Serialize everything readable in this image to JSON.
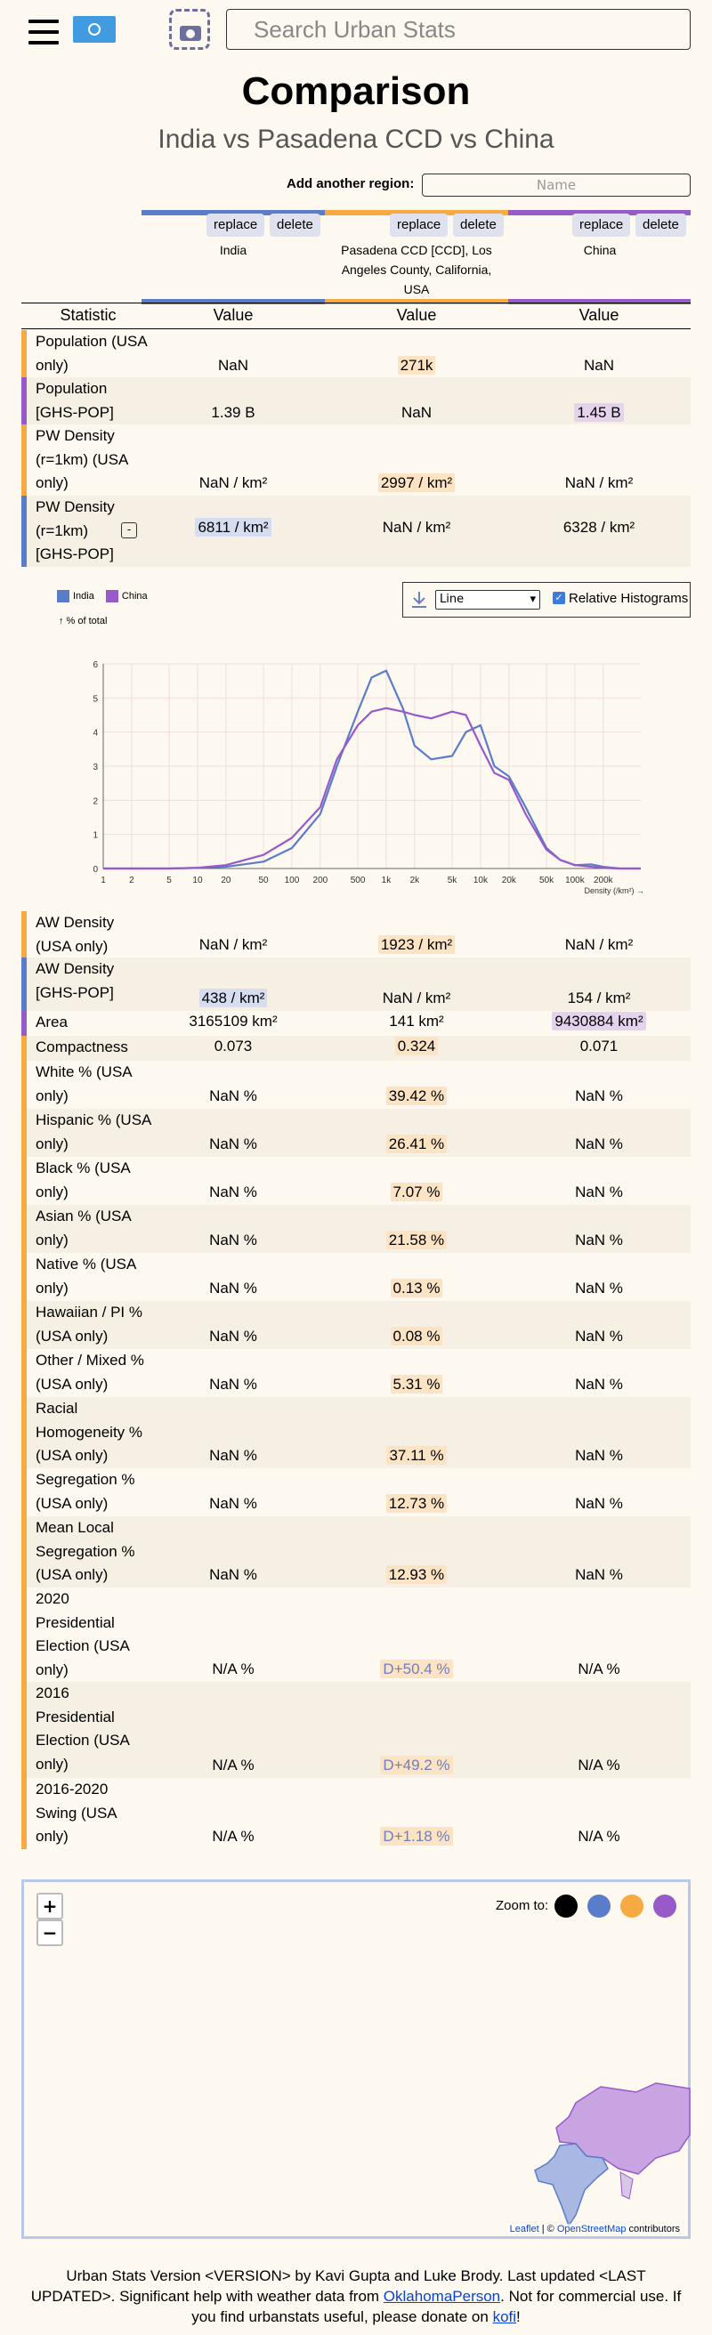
{
  "header": {
    "search_placeholder": "Search Urban Stats",
    "icons": [
      "menu-icon",
      "un-flag-icon",
      "screenshot-icon"
    ]
  },
  "title": "Comparison",
  "subtitle": "India vs Pasadena CCD vs China",
  "add_region": {
    "label": "Add another region:",
    "placeholder": "Name"
  },
  "regions": [
    {
      "name": "India",
      "color": "#5a7dc9",
      "replace": "replace",
      "delete": "delete"
    },
    {
      "name": "Pasadena CCD [CCD], Los Angeles County, California, USA",
      "color": "#f7aa41",
      "replace": "replace",
      "delete": "delete"
    },
    {
      "name": "China",
      "color": "#975ac9",
      "replace": "replace",
      "delete": "delete"
    }
  ],
  "table_headers": {
    "statistic": "Statistic",
    "value": "Value"
  },
  "rows_top": [
    {
      "stat": "Population (USA only)",
      "stripe": "#f7aa41",
      "v": [
        "NaN",
        "271k",
        "NaN"
      ]
    },
    {
      "stat": "Population [GHS-POP]",
      "stripe": "#975ac9",
      "v": [
        "1.39 B",
        "NaN",
        "1.45 B"
      ]
    },
    {
      "stat": "PW Density (r=1km) (USA only)",
      "stripe": "#f7aa41",
      "v": [
        "NaN / km²",
        "2997 / km²",
        "NaN / km²"
      ]
    },
    {
      "stat": "PW Density (r=1km) [GHS-POP]",
      "stripe": "#5a7dc9",
      "v": [
        "6811 / km²",
        "NaN / km²",
        "6328 / km²"
      ]
    }
  ],
  "chart_controls": {
    "select_value": "Line",
    "checkbox_label": "Relative Histograms",
    "y_note": "↑ % of total"
  },
  "chart_data": {
    "type": "line",
    "xlabel": "Density (/km²) →",
    "ylabel": "% of total",
    "x_ticks": [
      "1",
      "2",
      "5",
      "10",
      "20",
      "50",
      "100",
      "200",
      "500",
      "1k",
      "2k",
      "5k",
      "10k",
      "20k",
      "50k",
      "100k",
      "200k"
    ],
    "y_ticks": [
      "0",
      "1",
      "2",
      "3",
      "4",
      "5",
      "6"
    ],
    "ylim": [
      0,
      6
    ],
    "x": [
      1,
      2,
      5,
      10,
      20,
      50,
      100,
      200,
      300,
      500,
      700,
      1000,
      1500,
      2000,
      3000,
      5000,
      7000,
      10000,
      14000,
      20000,
      30000,
      50000,
      70000,
      100000,
      150000,
      200000,
      300000,
      500000
    ],
    "series": [
      {
        "name": "India",
        "color": "#5a7dc9",
        "values": [
          0,
          0,
          0,
          0.02,
          0.05,
          0.2,
          0.6,
          1.6,
          3.0,
          4.6,
          5.6,
          5.8,
          4.7,
          3.6,
          3.2,
          3.3,
          4.0,
          4.2,
          3.0,
          2.7,
          1.8,
          0.6,
          0.25,
          0.1,
          0.12,
          0.05,
          0,
          0
        ]
      },
      {
        "name": "China",
        "color": "#975ac9",
        "values": [
          0,
          0,
          0,
          0.02,
          0.1,
          0.4,
          0.9,
          1.8,
          3.2,
          4.2,
          4.6,
          4.7,
          4.6,
          4.5,
          4.4,
          4.6,
          4.5,
          3.6,
          2.8,
          2.6,
          1.6,
          0.55,
          0.25,
          0.1,
          0.05,
          0.02,
          0,
          0
        ]
      }
    ],
    "grid": true,
    "log_x": true,
    "legend": "top-left"
  },
  "rows_bottom": [
    {
      "stat": "AW Density (USA only)",
      "stripe": "#f7aa41",
      "v": [
        "NaN / km²",
        "1923 / km²",
        "NaN / km²"
      ]
    },
    {
      "stat": "AW Density [GHS-POP]",
      "stripe": "#5a7dc9",
      "v": [
        "438 / km²",
        "NaN / km²",
        "154 / km²"
      ]
    },
    {
      "stat": "Area",
      "stripe": "#975ac9",
      "v": [
        "3165109 km²",
        "141 km²",
        "9430884 km²"
      ]
    },
    {
      "stat": "Compactness",
      "stripe": "#f7aa41",
      "v": [
        "0.073",
        "0.324",
        "0.071"
      ]
    },
    {
      "stat": "White % (USA only)",
      "stripe": "#f7aa41",
      "v": [
        "NaN %",
        "39.42 %",
        "NaN %"
      ]
    },
    {
      "stat": "Hispanic % (USA only)",
      "stripe": "#f7aa41",
      "v": [
        "NaN %",
        "26.41 %",
        "NaN %"
      ]
    },
    {
      "stat": "Black % (USA only)",
      "stripe": "#f7aa41",
      "v": [
        "NaN %",
        "7.07 %",
        "NaN %"
      ]
    },
    {
      "stat": "Asian % (USA only)",
      "stripe": "#f7aa41",
      "v": [
        "NaN %",
        "21.58 %",
        "NaN %"
      ]
    },
    {
      "stat": "Native % (USA only)",
      "stripe": "#f7aa41",
      "v": [
        "NaN %",
        "0.13 %",
        "NaN %"
      ]
    },
    {
      "stat": "Hawaiian / PI % (USA only)",
      "stripe": "#f7aa41",
      "v": [
        "NaN %",
        "0.08 %",
        "NaN %"
      ]
    },
    {
      "stat": "Other / Mixed % (USA only)",
      "stripe": "#f7aa41",
      "v": [
        "NaN %",
        "5.31 %",
        "NaN %"
      ]
    },
    {
      "stat": "Racial Homogeneity % (USA only)",
      "stripe": "#f7aa41",
      "v": [
        "NaN %",
        "37.11 %",
        "NaN %"
      ]
    },
    {
      "stat": "Segregation % (USA only)",
      "stripe": "#f7aa41",
      "v": [
        "NaN %",
        "12.73 %",
        "NaN %"
      ]
    },
    {
      "stat": "Mean Local Segregation % (USA only)",
      "stripe": "#f7aa41",
      "v": [
        "NaN %",
        "12.93 %",
        "NaN %"
      ]
    },
    {
      "stat": "2020 Presidential Election (USA only)",
      "stripe": "#f7aa41",
      "v": [
        "N/A %",
        "D+50.4 %",
        "N/A %"
      ]
    },
    {
      "stat": "2016 Presidential Election (USA only)",
      "stripe": "#f7aa41",
      "v": [
        "N/A %",
        "D+49.2 %",
        "N/A %"
      ]
    },
    {
      "stat": "2016-2020 Swing (USA only)",
      "stripe": "#f7aa41",
      "v": [
        "N/A %",
        "D+1.18 %",
        "N/A %"
      ]
    }
  ],
  "map": {
    "zoom_in": "+",
    "zoom_out": "−",
    "zoom_to_label": "Zoom to:",
    "zoom_colors": [
      "#000000",
      "#5a7dc9",
      "#f7aa41",
      "#975ac9"
    ],
    "attribution_leaflet": "Leaflet",
    "attribution_sep": " | © ",
    "attribution_osm": "OpenStreetMap",
    "attribution_tail": " contributors"
  },
  "footer": {
    "text1": "Urban Stats Version <VERSION> by Kavi Gupta and Luke Brody. Last updated <LAST UPDATED>. Significant help with weather data from ",
    "link1": "OklahomaPerson",
    "text2": ". Not for commercial use. If you find urbanstats useful, please donate on ",
    "link2": "kofi",
    "text3": "!"
  }
}
